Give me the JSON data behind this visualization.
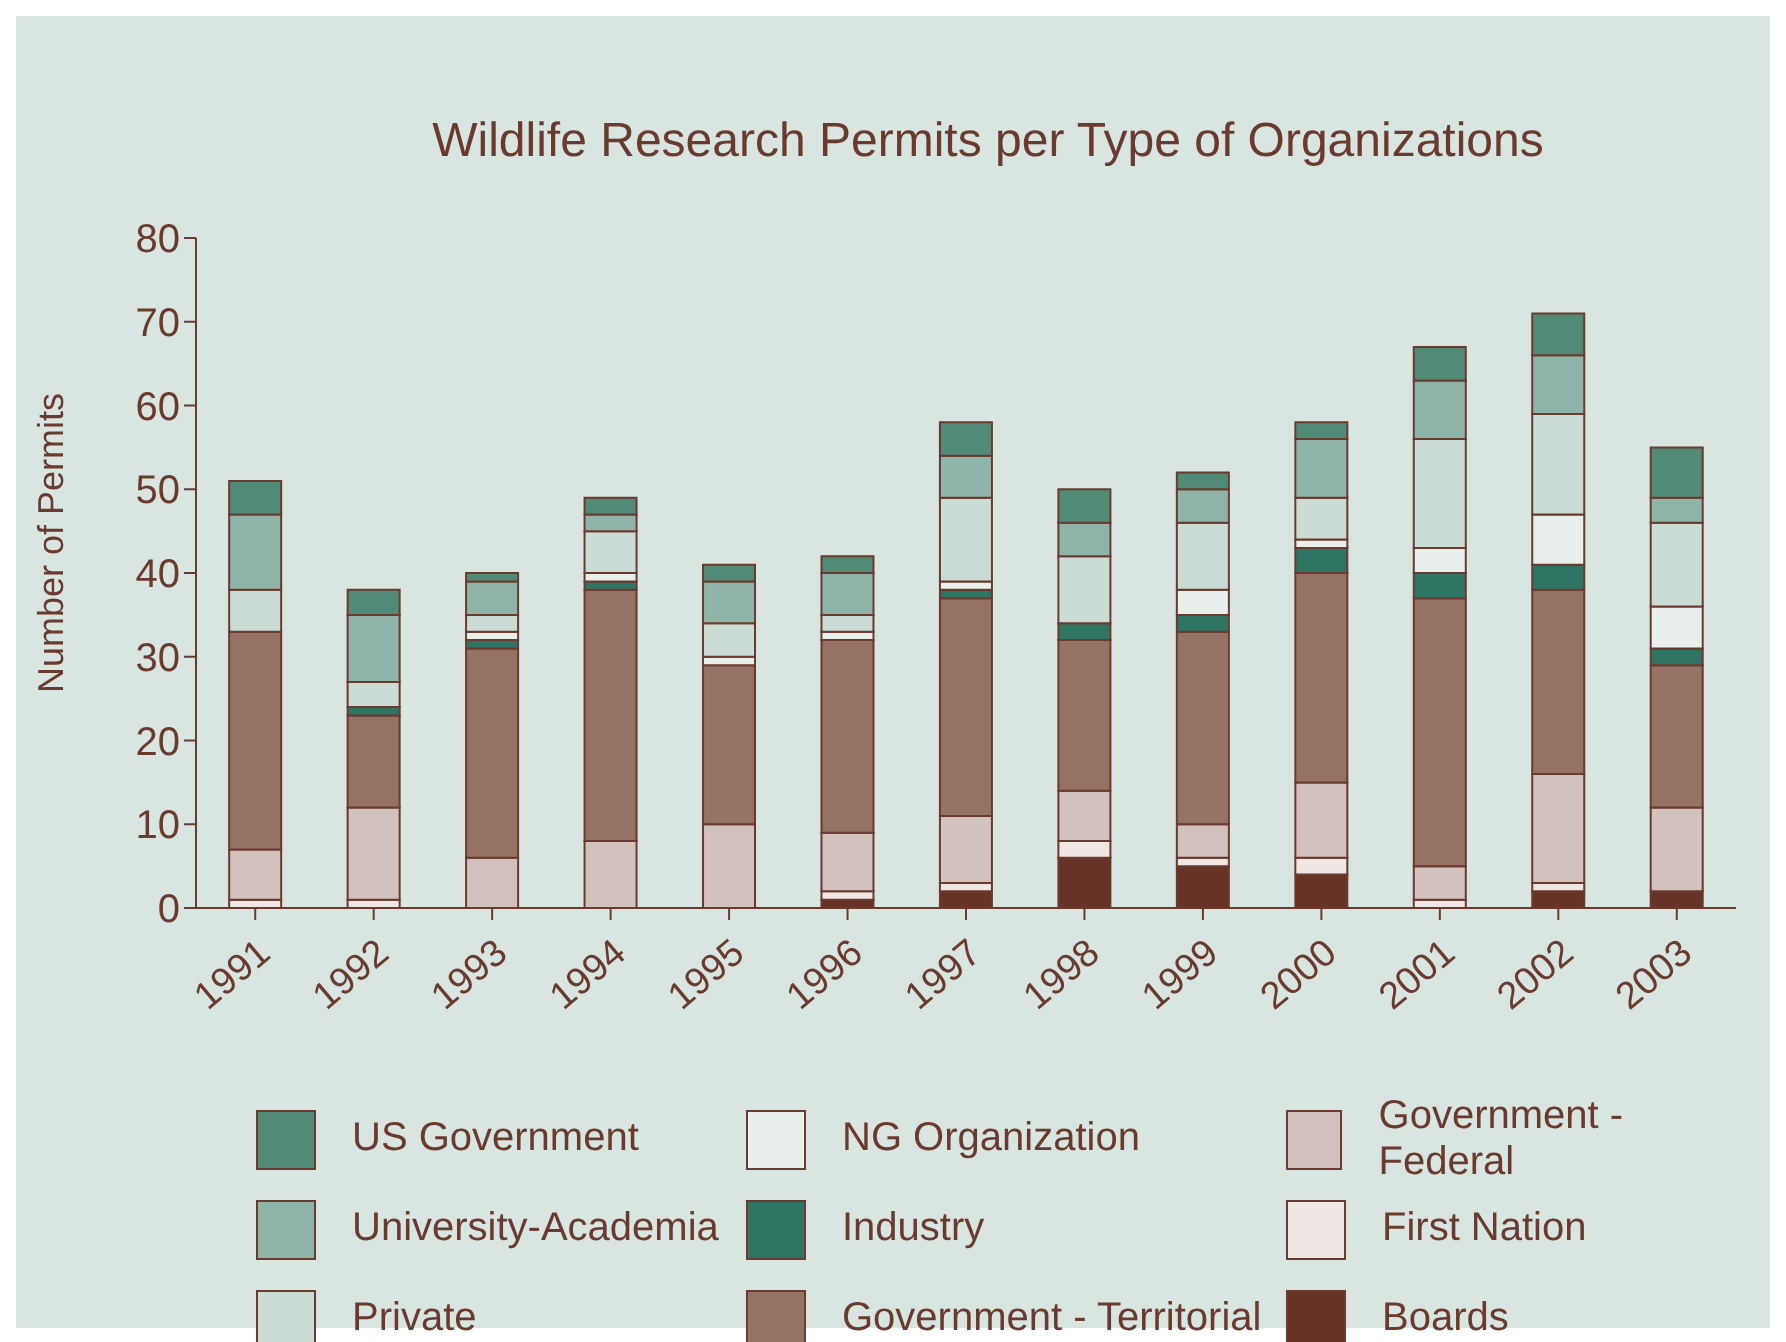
{
  "chart_data": {
    "type": "bar",
    "title": "Wildlife Research Permits per Type of Organizations",
    "ylabel": "Number of Permits",
    "categories": [
      "1991",
      "1992",
      "1993",
      "1994",
      "1995",
      "1996",
      "1997",
      "1998",
      "1999",
      "2000",
      "2001",
      "2002",
      "2003"
    ],
    "stacked": true,
    "ylim": [
      0,
      80
    ],
    "yticks": [
      0,
      10,
      20,
      30,
      40,
      50,
      60,
      70,
      80
    ],
    "grid": false,
    "legend": "bottom",
    "series": [
      {
        "name": "Boards",
        "color": "#673326",
        "values": [
          0,
          0,
          0,
          0,
          0,
          1,
          2,
          6,
          5,
          4,
          0,
          2,
          2
        ]
      },
      {
        "name": "First Nation",
        "color": "#f0e6e4",
        "values": [
          1,
          1,
          0,
          0,
          0,
          1,
          1,
          2,
          1,
          2,
          1,
          1,
          0
        ]
      },
      {
        "name": "Government - Federal",
        "color": "#d2c1bd",
        "values": [
          6,
          11,
          6,
          8,
          10,
          7,
          8,
          6,
          4,
          9,
          4,
          13,
          10
        ]
      },
      {
        "name": "Government - Territorial",
        "color": "#957264",
        "values": [
          26,
          11,
          25,
          30,
          19,
          23,
          26,
          18,
          23,
          25,
          32,
          22,
          17
        ]
      },
      {
        "name": "Industry",
        "color": "#2f7563",
        "values": [
          0,
          1,
          1,
          1,
          0,
          0,
          1,
          2,
          2,
          3,
          3,
          3,
          2
        ]
      },
      {
        "name": "NG Organization",
        "color": "#e8efec",
        "values": [
          0,
          0,
          1,
          1,
          1,
          1,
          1,
          0,
          3,
          1,
          3,
          6,
          5
        ]
      },
      {
        "name": "Private",
        "color": "#cadcd5",
        "values": [
          5,
          3,
          2,
          5,
          4,
          2,
          10,
          8,
          8,
          5,
          13,
          12,
          10
        ]
      },
      {
        "name": "University-Academia",
        "color": "#8fb5aa",
        "values": [
          9,
          8,
          4,
          2,
          5,
          5,
          5,
          4,
          4,
          7,
          7,
          7,
          3
        ]
      },
      {
        "name": "US Government",
        "color": "#528a78",
        "values": [
          4,
          3,
          1,
          2,
          2,
          2,
          4,
          4,
          2,
          2,
          4,
          5,
          6
        ]
      }
    ]
  }
}
